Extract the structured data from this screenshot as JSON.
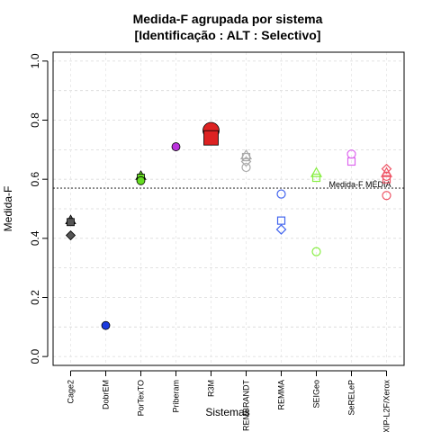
{
  "chart_data": {
    "type": "scatter",
    "title_line1": "Medida-F agrupada por sistema",
    "title_line2": "[Identificação : ALT : Selectivo]",
    "xlabel": "Sistemas",
    "ylabel": "Medida-F",
    "ylim": [
      -0.03,
      1.03
    ],
    "yticks": [
      "0.0",
      "0.2",
      "0.4",
      "0.6",
      "0.8",
      "1.0"
    ],
    "grid": true,
    "categories": [
      "Cage2",
      "DobrEM",
      "PorTexTO",
      "Priberam",
      "R3M",
      "REMBRANDT",
      "REMMA",
      "SEIGeo",
      "SeRELeP",
      "XIP-L2F/Xerox"
    ],
    "reference_line": {
      "value": 0.57,
      "label": "Medida-F MÉDIA"
    },
    "colors": {
      "Cage2": "#555555",
      "DobrEM": "#1a3adf",
      "PorTexTO": "#66dd22",
      "Priberam": "#bb33dd",
      "R3M": "#dd2222",
      "REMBRANDT": "#aaaaaa",
      "REMMA": "#4466ee",
      "SEIGeo": "#88ee44",
      "SeRELeP": "#dd66ee",
      "XIP-L2F/Xerox": "#ee5566"
    },
    "points": [
      {
        "system": "Cage2",
        "value": 0.46,
        "marker": "triangle",
        "filled": true
      },
      {
        "system": "Cage2",
        "value": 0.455,
        "marker": "square",
        "filled": true
      },
      {
        "system": "Cage2",
        "value": 0.41,
        "marker": "diamond",
        "filled": true
      },
      {
        "system": "DobrEM",
        "value": 0.105,
        "marker": "circle",
        "filled": true
      },
      {
        "system": "PorTexTO",
        "value": 0.61,
        "marker": "triangle",
        "filled": true
      },
      {
        "system": "PorTexTO",
        "value": 0.605,
        "marker": "square",
        "filled": true
      },
      {
        "system": "PorTexTO",
        "value": 0.595,
        "marker": "circle",
        "filled": true
      },
      {
        "system": "Priberam",
        "value": 0.71,
        "marker": "circle",
        "filled": true
      },
      {
        "system": "R3M",
        "value": 0.765,
        "marker": "circle-large",
        "filled": true
      },
      {
        "system": "R3M",
        "value": 0.74,
        "marker": "square-large",
        "filled": true
      },
      {
        "system": "REMBRANDT",
        "value": 0.68,
        "marker": "triangle",
        "filled": false
      },
      {
        "system": "REMBRANDT",
        "value": 0.675,
        "marker": "square",
        "filled": false
      },
      {
        "system": "REMBRANDT",
        "value": 0.66,
        "marker": "diamond",
        "filled": false
      },
      {
        "system": "REMBRANDT",
        "value": 0.64,
        "marker": "circle",
        "filled": false
      },
      {
        "system": "REMMA",
        "value": 0.55,
        "marker": "circle",
        "filled": false
      },
      {
        "system": "REMMA",
        "value": 0.46,
        "marker": "square",
        "filled": false
      },
      {
        "system": "REMMA",
        "value": 0.43,
        "marker": "diamond",
        "filled": false
      },
      {
        "system": "SEIGeo",
        "value": 0.62,
        "marker": "triangle",
        "filled": false
      },
      {
        "system": "SEIGeo",
        "value": 0.605,
        "marker": "square",
        "filled": false
      },
      {
        "system": "SEIGeo",
        "value": 0.355,
        "marker": "circle",
        "filled": false
      },
      {
        "system": "SeRELeP",
        "value": 0.685,
        "marker": "circle",
        "filled": false
      },
      {
        "system": "SeRELeP",
        "value": 0.66,
        "marker": "square",
        "filled": false
      },
      {
        "system": "XIP-L2F/Xerox",
        "value": 0.635,
        "marker": "diamond",
        "filled": false
      },
      {
        "system": "XIP-L2F/Xerox",
        "value": 0.62,
        "marker": "triangle",
        "filled": false
      },
      {
        "system": "XIP-L2F/Xerox",
        "value": 0.61,
        "marker": "circle",
        "filled": false
      },
      {
        "system": "XIP-L2F/Xerox",
        "value": 0.6,
        "marker": "square",
        "filled": false
      },
      {
        "system": "XIP-L2F/Xerox",
        "value": 0.545,
        "marker": "circle",
        "filled": false
      }
    ]
  }
}
